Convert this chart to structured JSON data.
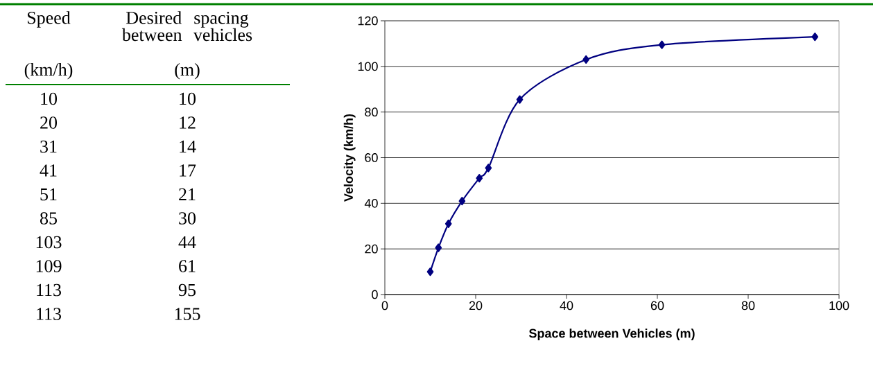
{
  "chart_data": [
    {
      "type": "other",
      "annotations": [
        "Speed",
        "Desired spacing between vehicles",
        "(km/h)",
        "(m)",
        "10",
        "10",
        "20",
        "12",
        "31",
        "14",
        "41",
        "17",
        "51",
        "21",
        "85",
        "30",
        "103",
        "44",
        "109",
        "61",
        "113",
        "95",
        "113",
        "155"
      ]
    },
    {
      "type": "line",
      "xlabel": "Space between Vehicles (m)",
      "ylabel": "Velocity (km/h)",
      "x": [
        10,
        11.8,
        14,
        17,
        20.8,
        22.8,
        29.7,
        44.3,
        61,
        94.7
      ],
      "values": [
        10,
        20.5,
        31,
        41,
        51,
        55.5,
        85.5,
        103,
        109.5,
        113
      ],
      "color": "#000080",
      "marker": "diamond",
      "line_style": "solid",
      "grid": "y",
      "xlim": [
        0,
        100
      ],
      "ylim": [
        0,
        120
      ],
      "xticks": [
        0,
        20,
        40,
        60,
        80,
        100
      ],
      "yticks": [
        0,
        20,
        40,
        60,
        80,
        100,
        120
      ]
    }
  ]
}
